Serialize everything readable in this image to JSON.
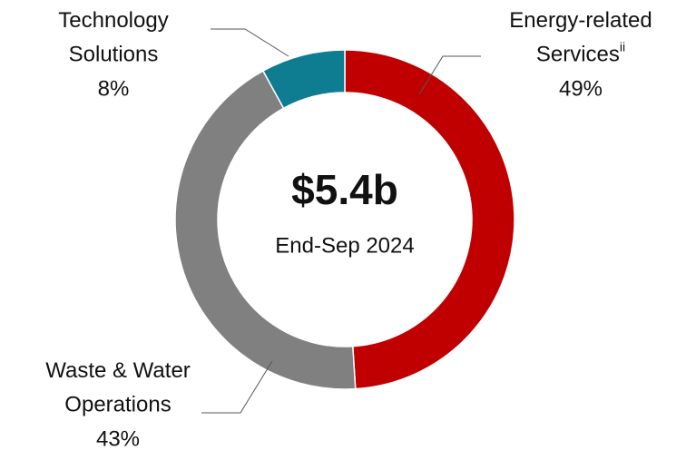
{
  "chart_data": {
    "type": "donut",
    "center_value": "$5.4b",
    "center_subtitle": "End-Sep 2024",
    "categories": [
      [
        "Energy-related",
        "Services"
      ],
      [
        "Waste & Water",
        "Operations"
      ],
      [
        "Technology",
        "Solutions"
      ]
    ],
    "superscripts": [
      "ii",
      null,
      null
    ],
    "values": [
      49,
      43,
      8
    ],
    "value_labels": [
      "49%",
      "43%",
      "8%"
    ],
    "colors": [
      "#c00000",
      "#808080",
      "#0e7c91"
    ]
  }
}
